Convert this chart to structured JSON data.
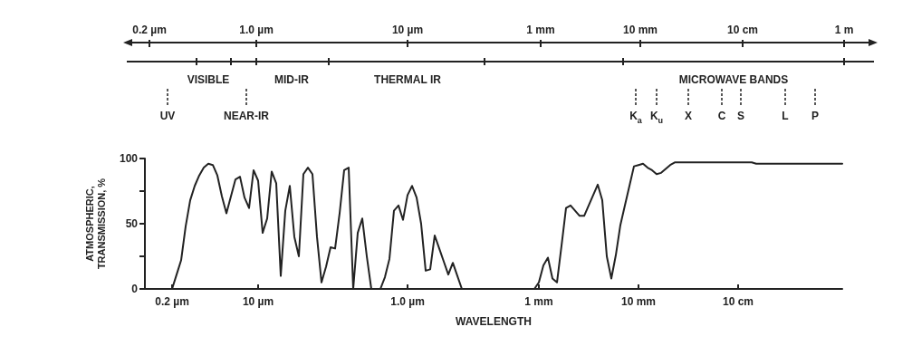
{
  "chart_data": {
    "type": "line",
    "xlabel": "WAVELENGTH",
    "ylabel": "ATMOSPHERIC,\nTRANSMISSION, %",
    "categories": [
      null,
      null,
      null,
      null,
      null,
      null,
      "0.2 µm",
      null,
      null,
      null,
      null,
      null,
      null,
      null,
      null,
      null,
      null,
      null,
      null,
      null,
      null,
      null,
      null,
      null,
      null,
      "10 µm",
      null,
      null,
      null,
      null,
      null,
      null,
      null,
      null,
      null,
      null,
      null,
      null,
      null,
      null,
      null,
      null,
      null,
      null,
      null,
      null,
      null,
      null,
      null,
      null,
      null,
      null,
      null,
      null,
      null,
      null,
      null,
      null,
      "1.0 µm",
      null,
      null,
      null,
      null,
      null,
      null,
      null,
      null,
      null,
      null,
      null,
      null,
      null,
      null,
      null,
      null,
      null,
      null,
      null,
      null,
      null,
      null,
      null,
      null,
      null,
      null,
      null,
      null,
      "1 mm",
      null,
      null,
      null,
      null,
      null,
      null,
      null,
      null,
      null,
      null,
      null,
      null,
      null,
      null,
      null,
      null,
      null,
      null,
      null,
      null,
      null,
      "10 mm",
      null,
      null,
      null,
      null,
      null,
      null,
      null,
      null,
      null,
      null,
      null,
      null,
      null,
      null,
      null,
      null,
      null,
      null,
      null,
      null,
      null,
      "10 cm",
      null,
      null,
      null,
      null,
      null,
      null,
      null,
      null,
      null,
      null,
      null,
      null,
      null,
      null,
      null,
      null,
      null,
      null,
      null,
      null,
      null,
      null,
      null
    ],
    "series": [
      {
        "color": "#222222",
        "values": [
          0,
          0,
          0,
          0,
          0,
          0,
          0,
          11,
          22,
          48,
          68,
          79,
          87,
          93,
          96,
          95,
          87,
          71,
          58,
          71,
          84,
          86,
          70,
          62,
          91,
          83,
          43,
          54,
          90,
          81,
          10,
          60,
          79,
          40,
          25,
          88,
          93,
          88,
          40,
          5,
          17,
          32,
          31,
          58,
          91,
          93,
          0,
          43,
          54,
          25,
          0,
          0,
          0,
          9,
          23,
          60,
          64,
          53,
          72,
          79,
          70,
          50,
          14,
          15,
          41,
          31,
          21,
          11,
          20,
          10,
          0,
          0,
          0,
          0,
          0,
          0,
          0,
          0,
          0,
          0,
          0,
          0,
          0,
          0,
          0,
          0,
          0,
          5,
          18,
          24,
          8,
          5,
          33,
          62,
          64,
          60,
          56,
          56,
          64,
          72,
          80,
          68,
          25,
          8,
          26,
          49,
          64,
          79,
          94,
          95,
          96,
          93,
          91,
          88,
          89,
          92,
          95,
          97,
          97,
          97,
          97,
          97,
          97,
          97,
          97,
          97,
          97,
          97,
          97,
          97,
          97,
          97,
          97,
          97,
          97,
          96,
          96,
          96,
          96,
          96,
          96,
          96,
          96,
          96,
          96,
          96,
          96,
          96,
          96,
          96,
          96,
          96,
          96,
          96,
          96
        ]
      }
    ],
    "ylim": [
      0,
      100
    ],
    "yticks": [
      0,
      {
        "value": 25,
        "label": null
      },
      50,
      {
        "value": 75,
        "label": null
      },
      100
    ],
    "annotations": [
      "0.2 µm",
      "1.0 µm",
      "10 µm",
      "1 mm",
      "10 mm",
      "10 cm",
      "1 m",
      "VISIBLE",
      "MID-IR",
      "THERMAL IR",
      "MICROWAVE BANDS",
      "UV",
      "NEAR-IR",
      "K$_{a}$",
      "K$_{u}$",
      "X",
      "C",
      "S",
      "L",
      "P"
    ],
    "grid": false,
    "marker": "none",
    "line_style": "solid"
  }
}
